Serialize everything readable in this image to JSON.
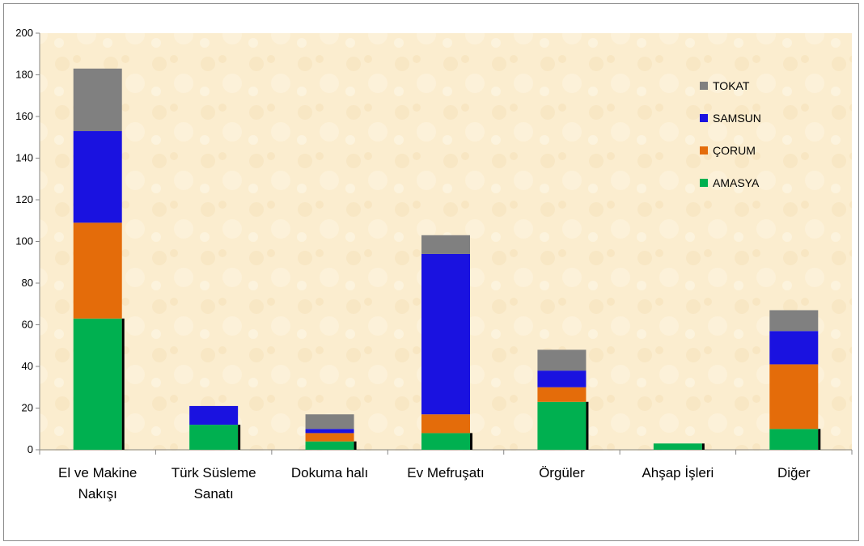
{
  "chart_data": {
    "type": "bar",
    "stacked": true,
    "categories": [
      [
        "El ve Makine",
        "Nakışı"
      ],
      [
        "Türk Süsleme",
        "Sanatı"
      ],
      [
        "Dokuma halı"
      ],
      [
        "Ev Mefruşatı"
      ],
      [
        "Örgüler"
      ],
      [
        "Ahşap İşleri"
      ],
      [
        "Diğer"
      ]
    ],
    "series": [
      {
        "name": "AMASYA",
        "color": "#00b050",
        "values": [
          63,
          12,
          4,
          8,
          23,
          3,
          10
        ]
      },
      {
        "name": "ÇORUM",
        "color": "#e46c0a",
        "values": [
          46,
          0,
          4,
          9,
          7,
          0,
          31
        ]
      },
      {
        "name": "SAMSUN",
        "color": "#1a12e0",
        "values": [
          44,
          9,
          2,
          77,
          8,
          0,
          16
        ]
      },
      {
        "name": "TOKAT",
        "color": "#808080",
        "values": [
          30,
          0,
          7,
          9,
          10,
          0,
          10
        ]
      }
    ],
    "ylim": [
      0,
      200
    ],
    "yticks": [
      0,
      20,
      40,
      60,
      80,
      100,
      120,
      140,
      160,
      180,
      200
    ],
    "legend_placement": "top-right",
    "legend_order": [
      "TOKAT",
      "SAMSUN",
      "ÇORUM",
      "AMASYA"
    ],
    "grid": false,
    "plot_background": "#fbeccd"
  }
}
